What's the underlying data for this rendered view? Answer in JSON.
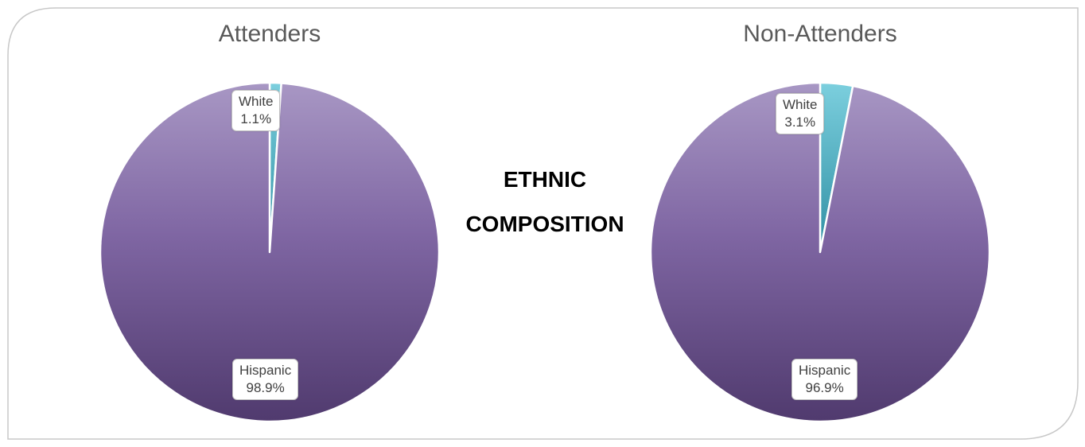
{
  "center_title": {
    "line1": "ETHNIC",
    "line2": "COMPOSITION"
  },
  "colors": {
    "hispanic_top": "#a897c4",
    "hispanic_mid": "#7f66a3",
    "hispanic_bottom": "#503a6e",
    "white_top": "#7ccfde",
    "white_bottom": "#2f8fa3",
    "frame_border": "#c8c8c8",
    "label_border": "#bfbfbf"
  },
  "chart_data": [
    {
      "type": "pie",
      "title": "Attenders",
      "slices": [
        {
          "label": "White",
          "value": 1.1,
          "value_label": "1.1%"
        },
        {
          "label": "Hispanic",
          "value": 98.9,
          "value_label": "98.9%"
        }
      ]
    },
    {
      "type": "pie",
      "title": "Non-Attenders",
      "slices": [
        {
          "label": "White",
          "value": 3.1,
          "value_label": "3.1%"
        },
        {
          "label": "Hispanic",
          "value": 96.9,
          "value_label": "96.9%"
        }
      ]
    }
  ]
}
